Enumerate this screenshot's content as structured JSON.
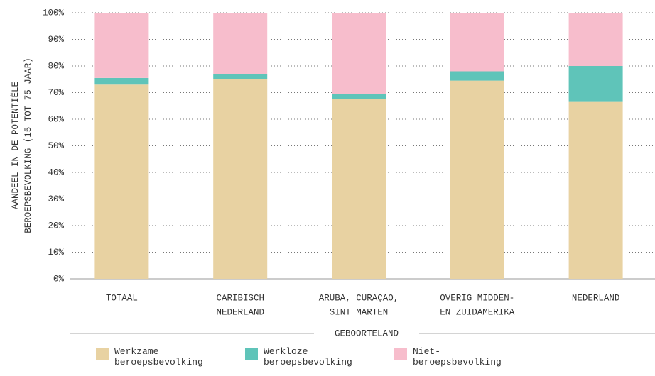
{
  "chart_data": {
    "type": "stacked_bar",
    "y_label": [
      "AANDEEL IN DE POTENTIËLE",
      "BEROEPSBEVOLKING (15 TOT 75 JAAR)"
    ],
    "x_label": "GEBOORTELAND",
    "categories": [
      [
        "TOTAAL"
      ],
      [
        "CARIBISCH",
        "NEDERLAND"
      ],
      [
        "ARUBA, CURAÇAO,",
        "SINT MARTEN"
      ],
      [
        "OVERIG MIDDEN-",
        "EN ZUIDAMERIKA"
      ],
      [
        "NEDERLAND"
      ]
    ],
    "series": [
      {
        "name": "Werkzame beroepsbevolking",
        "color": "#e8d2a2",
        "values": [
          73,
          75,
          67.5,
          74.5,
          66.5
        ]
      },
      {
        "name": "Werkloze beroepsbevolking",
        "color": "#5fc4b9",
        "values": [
          2.5,
          2,
          2,
          3.5,
          13.5
        ]
      },
      {
        "name": "Niet-beroepsbevolking",
        "color": "#f7bdcc",
        "values": [
          24.5,
          23,
          30.5,
          22,
          20
        ]
      }
    ],
    "ylim": [
      0,
      100
    ],
    "yticks": [
      {
        "value": 0,
        "label": "0%"
      },
      {
        "value": 10,
        "label": "10%"
      },
      {
        "value": 20,
        "label": "20%"
      },
      {
        "value": 30,
        "label": "30%"
      },
      {
        "value": 40,
        "label": "40%"
      },
      {
        "value": 50,
        "label": "50%"
      },
      {
        "value": 60,
        "label": "60%"
      },
      {
        "value": 70,
        "label": "70%"
      },
      {
        "value": 80,
        "label": "80%"
      },
      {
        "value": 90,
        "label": "90%"
      },
      {
        "value": 100,
        "label": "100%"
      }
    ],
    "grid": true
  }
}
